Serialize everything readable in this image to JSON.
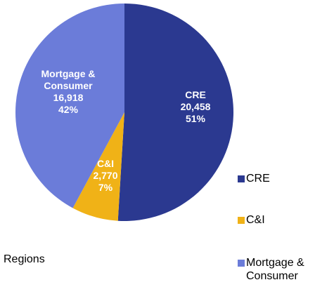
{
  "chart_data": {
    "type": "pie",
    "caption": "Regions",
    "categories": [
      "CRE",
      "C&I",
      "Mortgage & Consumer"
    ],
    "values": [
      20458,
      2770,
      16918
    ],
    "value_labels": [
      "20,458",
      "2,770",
      "16,918"
    ],
    "percent_labels": [
      "51%",
      "7%",
      "42%"
    ],
    "colors": [
      "#2b3990",
      "#f0b217",
      "#6b7cd9"
    ],
    "legend": "right"
  }
}
